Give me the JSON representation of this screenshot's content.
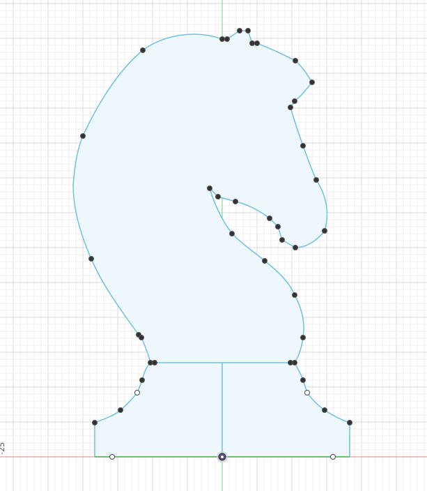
{
  "app": {
    "view": "sketch"
  },
  "colors": {
    "grid_minor": "#eeeeee",
    "grid_major": "#d9d9d9",
    "x_axis": "#e88080",
    "y_axis": "#7fcf7f",
    "profile_fill": "#eef7fc",
    "profile_stroke": "#6ec1e4",
    "point_fill": "#333333",
    "point_stroke": "#555555",
    "base_line": "#62c462",
    "origin": "#5a4a8a"
  },
  "axes": {
    "y_tick_label": "-25"
  },
  "sketch": {
    "profile": "knight-chess-piece",
    "constraint_point_count": 38,
    "open_point_count": 4
  }
}
